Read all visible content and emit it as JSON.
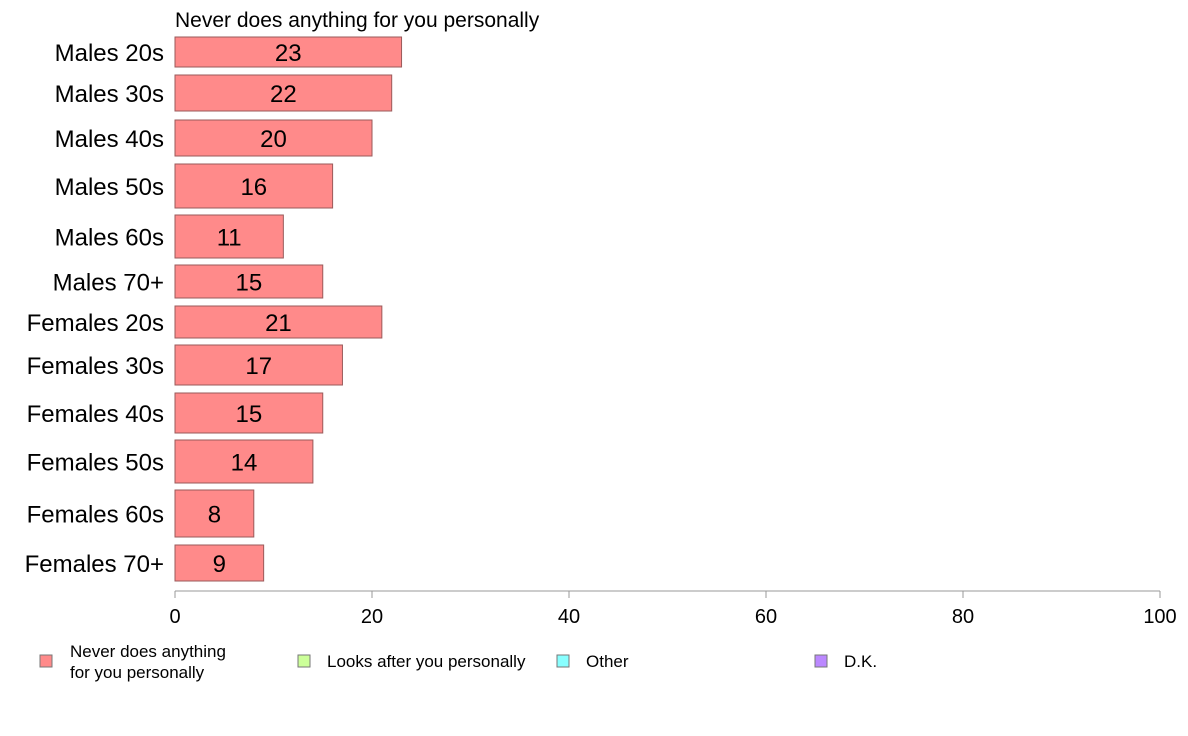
{
  "chart_data": {
    "type": "bar",
    "orientation": "horizontal",
    "title": "Never does anything for you personally",
    "categories": [
      "Males 20s",
      "Males 30s",
      "Males 40s",
      "Males 50s",
      "Males 60s",
      "Males 70+",
      "Females 20s",
      "Females 30s",
      "Females 40s",
      "Females 50s",
      "Females 60s",
      "Females 70+"
    ],
    "series": [
      {
        "name": "Never does anything for you personally",
        "values": [
          23,
          22,
          20,
          16,
          11,
          15,
          21,
          17,
          15,
          14,
          8,
          9
        ],
        "labels": [
          "23",
          "22",
          "20",
          "16",
          "11",
          "15",
          "21",
          "17",
          "15",
          "14",
          "8",
          "9"
        ],
        "color": "#ff8a8a"
      }
    ],
    "xlim": [
      0,
      100
    ],
    "xticks": [
      0,
      20,
      40,
      60,
      80,
      100
    ],
    "xtick_labels": [
      "0",
      "20",
      "40",
      "60",
      "80",
      "100"
    ],
    "grid": false,
    "legend": {
      "placement": "bottom",
      "entries": [
        {
          "label_lines": [
            "Never does anything",
            "for you personally"
          ],
          "color": "#ff8a8a"
        },
        {
          "label_lines": [
            "Looks after you personally"
          ],
          "color": "#ccff99"
        },
        {
          "label_lines": [
            "Other"
          ],
          "color": "#88ffff"
        },
        {
          "label_lines": [
            "D.K."
          ],
          "color": "#bb88ff"
        }
      ]
    }
  }
}
